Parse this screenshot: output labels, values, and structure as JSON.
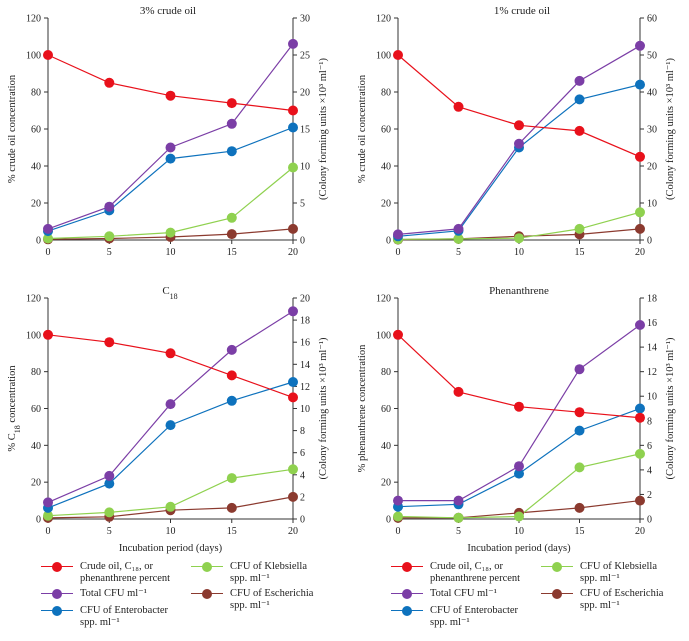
{
  "colors": {
    "crude": "#e8111b",
    "total": "#7b3ea6",
    "enterobacter": "#0e72bd",
    "klebsiella": "#8fd14f",
    "escherichia": "#8b3a2f"
  },
  "chart_data": [
    {
      "type": "line",
      "title": "3% crude oil",
      "title_parts": [
        {
          "t": "3% crude oil",
          "sub": false
        }
      ],
      "xlabel": "",
      "ylabel_left": "% crude oil concentration",
      "ylabel_right": "(Colony forming units ×10³ ml⁻¹)",
      "x": [
        0,
        5,
        10,
        15,
        20
      ],
      "xlim": [
        0,
        20
      ],
      "ylim_left": [
        0,
        120
      ],
      "yticks_left": [
        0,
        20,
        40,
        60,
        80,
        100,
        120
      ],
      "ylim_right": [
        0,
        30
      ],
      "yticks_right": [
        0,
        5,
        10,
        15,
        20,
        25,
        30
      ],
      "series": [
        {
          "key": "crude",
          "axis": "left",
          "values": [
            100,
            85,
            78,
            74,
            70
          ]
        },
        {
          "key": "total",
          "axis": "right",
          "values": [
            1.5,
            4.5,
            12.5,
            15.7,
            26.5
          ]
        },
        {
          "key": "enterobacter",
          "axis": "right",
          "values": [
            1.2,
            4.0,
            11.0,
            12.0,
            15.2
          ]
        },
        {
          "key": "klebsiella",
          "axis": "right",
          "values": [
            0.2,
            0.5,
            1.0,
            3.0,
            9.8
          ]
        },
        {
          "key": "escherichia",
          "axis": "right",
          "values": [
            0.1,
            0.2,
            0.4,
            0.8,
            1.5
          ]
        }
      ]
    },
    {
      "type": "line",
      "title": "1% crude oil",
      "title_parts": [
        {
          "t": "1% crude oil",
          "sub": false
        }
      ],
      "xlabel": "",
      "ylabel_left": "% crude oil concentration",
      "ylabel_right": "(Colony forming units ×10³ ml⁻¹)",
      "x": [
        0,
        5,
        10,
        15,
        20
      ],
      "xlim": [
        0,
        20
      ],
      "ylim_left": [
        0,
        120
      ],
      "yticks_left": [
        0,
        20,
        40,
        60,
        80,
        100,
        120
      ],
      "ylim_right": [
        0,
        60
      ],
      "yticks_right": [
        0,
        10,
        20,
        30,
        40,
        50,
        60
      ],
      "series": [
        {
          "key": "crude",
          "axis": "left",
          "values": [
            100,
            72,
            62,
            59,
            45
          ]
        },
        {
          "key": "total",
          "axis": "right",
          "values": [
            1.5,
            3.0,
            26.0,
            43.0,
            52.5
          ]
        },
        {
          "key": "enterobacter",
          "axis": "right",
          "values": [
            1.0,
            2.5,
            25.0,
            38.0,
            42.0
          ]
        },
        {
          "key": "klebsiella",
          "axis": "right",
          "values": [
            0.2,
            0.3,
            0.5,
            3.0,
            7.5
          ]
        },
        {
          "key": "escherichia",
          "axis": "right",
          "values": [
            0.1,
            0.3,
            1.0,
            1.5,
            3.0
          ]
        }
      ]
    },
    {
      "type": "line",
      "title": "C18",
      "title_parts": [
        {
          "t": "C",
          "sub": false
        },
        {
          "t": "18",
          "sub": true
        }
      ],
      "xlabel": "Incubation period (days)",
      "ylabel_left_parts": [
        {
          "t": "% C",
          "sub": false
        },
        {
          "t": "18",
          "sub": true
        },
        {
          "t": " concentration",
          "sub": false
        }
      ],
      "ylabel_left": "% C18 concentration",
      "ylabel_right": "(Colony forming units ×10³ ml⁻¹)",
      "x": [
        0,
        5,
        10,
        15,
        20
      ],
      "xlim": [
        0,
        20
      ],
      "ylim_left": [
        0,
        120
      ],
      "yticks_left": [
        0,
        20,
        40,
        60,
        80,
        100,
        120
      ],
      "ylim_right": [
        0,
        20
      ],
      "yticks_right": [
        0,
        2,
        4,
        6,
        8,
        10,
        12,
        14,
        16,
        18,
        20
      ],
      "series": [
        {
          "key": "crude",
          "axis": "left",
          "values": [
            100,
            96,
            90,
            78,
            66
          ]
        },
        {
          "key": "total",
          "axis": "right",
          "values": [
            1.5,
            3.9,
            10.4,
            15.3,
            18.8
          ]
        },
        {
          "key": "enterobacter",
          "axis": "right",
          "values": [
            1.0,
            3.2,
            8.5,
            10.7,
            12.4
          ]
        },
        {
          "key": "klebsiella",
          "axis": "right",
          "values": [
            0.3,
            0.6,
            1.1,
            3.7,
            4.5
          ]
        },
        {
          "key": "escherichia",
          "axis": "right",
          "values": [
            0.1,
            0.2,
            0.8,
            1.0,
            2.0
          ]
        }
      ]
    },
    {
      "type": "line",
      "title": "Phenanthrene",
      "title_parts": [
        {
          "t": "Phenanthrene",
          "sub": false
        }
      ],
      "xlabel": "Incubation period (days)",
      "ylabel_left": "% phenanthrene concentration",
      "ylabel_right": "(Colony forming units ×10³ ml⁻¹)",
      "x": [
        0,
        5,
        10,
        15,
        20
      ],
      "xlim": [
        0,
        20
      ],
      "ylim_left": [
        0,
        120
      ],
      "yticks_left": [
        0,
        20,
        40,
        60,
        80,
        100,
        120
      ],
      "ylim_right": [
        0,
        18
      ],
      "yticks_right": [
        0,
        2,
        4,
        6,
        8,
        10,
        12,
        14,
        16,
        18
      ],
      "series": [
        {
          "key": "crude",
          "axis": "left",
          "values": [
            100,
            69,
            61,
            58,
            55
          ]
        },
        {
          "key": "total",
          "axis": "right",
          "values": [
            1.5,
            1.5,
            4.3,
            12.2,
            15.8
          ]
        },
        {
          "key": "enterobacter",
          "axis": "right",
          "values": [
            1.0,
            1.2,
            3.7,
            7.2,
            9.0
          ]
        },
        {
          "key": "klebsiella",
          "axis": "right",
          "values": [
            0.2,
            0.1,
            0.2,
            4.2,
            5.3
          ]
        },
        {
          "key": "escherichia",
          "axis": "right",
          "values": [
            0.1,
            0.1,
            0.5,
            0.9,
            1.5
          ]
        }
      ]
    }
  ],
  "legend": {
    "items": [
      {
        "key": "crude",
        "label": "Crude oil, C₁₈, or\nphenanthrene percent"
      },
      {
        "key": "klebsiella",
        "label": "CFU of Klebsiella\nspp. ml⁻¹"
      },
      {
        "key": "total",
        "label": "Total CFU ml⁻¹"
      },
      {
        "key": "escherichia",
        "label": "CFU of Escherichia\nspp. ml⁻¹"
      },
      {
        "key": "enterobacter",
        "label": "CFU of Enterobacter\nspp. ml⁻¹"
      }
    ]
  }
}
